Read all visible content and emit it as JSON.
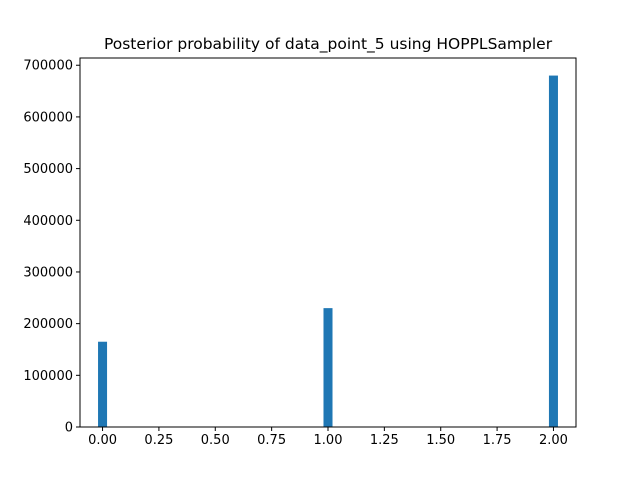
{
  "chart_data": {
    "type": "bar",
    "title": "Posterior probability of data_point_5 using HOPPLSampler",
    "xlabel": "",
    "ylabel": "",
    "bar_color": "#1f77b4",
    "bin_width": 0.04,
    "bars": [
      {
        "x": 0.0,
        "value": 165000
      },
      {
        "x": 1.0,
        "value": 230000
      },
      {
        "x": 2.0,
        "value": 680000
      }
    ],
    "xlim": [
      -0.1,
      2.1
    ],
    "ylim": [
      0,
      714000
    ],
    "x_ticks": [
      0.0,
      0.25,
      0.5,
      0.75,
      1.0,
      1.25,
      1.5,
      1.75,
      2.0
    ],
    "x_tick_labels": [
      "0.00",
      "0.25",
      "0.50",
      "0.75",
      "1.00",
      "1.25",
      "1.50",
      "1.75",
      "2.00"
    ],
    "y_ticks": [
      0,
      100000,
      200000,
      300000,
      400000,
      500000,
      600000,
      700000
    ],
    "y_tick_labels": [
      "0",
      "100000",
      "200000",
      "300000",
      "400000",
      "500000",
      "600000",
      "700000"
    ],
    "grid": false,
    "legend": "none"
  }
}
